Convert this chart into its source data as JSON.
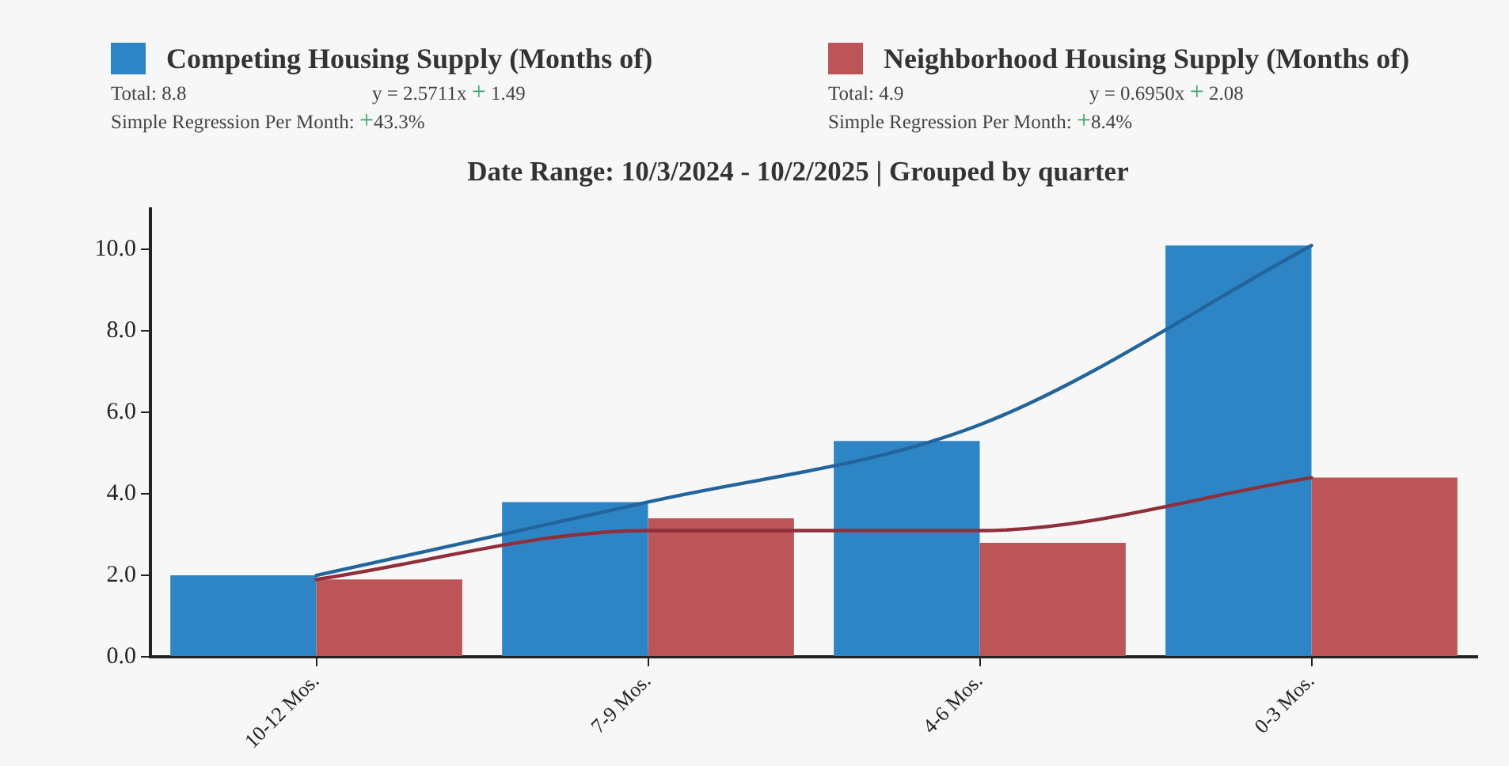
{
  "chart_data": {
    "type": "bar",
    "title": "Date Range: 10/3/2024 - 10/2/2025 | Grouped by quarter",
    "annotations": [
      "Total: 8.8",
      "y = 2.5711x + 1.49",
      "Simple Regression Per Month: +43.3%",
      "Total: 4.9",
      "y = 0.6950x + 2.08",
      "Simple Regression Per Month: +8.4%"
    ],
    "categories": [
      "10-12 Mos.",
      "7-9 Mos.",
      "4-6 Mos.",
      "0-3 Mos."
    ],
    "series": [
      {
        "name": "Competing Housing Supply (Months of)",
        "color": "#2e85c5",
        "values": [
          2.0,
          3.8,
          5.3,
          10.1
        ]
      },
      {
        "name": "Neighborhood Housing Supply (Months of)",
        "color": "#bb5557",
        "values": [
          1.9,
          3.4,
          2.8,
          4.4
        ]
      },
      {
        "type": "line",
        "color": "#22649c",
        "values": [
          2.0,
          3.8,
          5.7,
          10.1
        ]
      },
      {
        "type": "line",
        "color": "#8e2f3a",
        "values": [
          1.9,
          3.1,
          3.1,
          4.4
        ]
      }
    ],
    "ylim": [
      0,
      11
    ],
    "yticks": [
      {
        "value": 0,
        "label": "0.0"
      },
      {
        "value": 2,
        "label": "2.0"
      },
      {
        "value": 4,
        "label": "4.0"
      },
      {
        "value": 6,
        "label": "6.0"
      },
      {
        "value": 8,
        "label": "8.0"
      },
      {
        "value": 10,
        "label": "10.0"
      }
    ],
    "legend": "top",
    "marker": "none"
  }
}
